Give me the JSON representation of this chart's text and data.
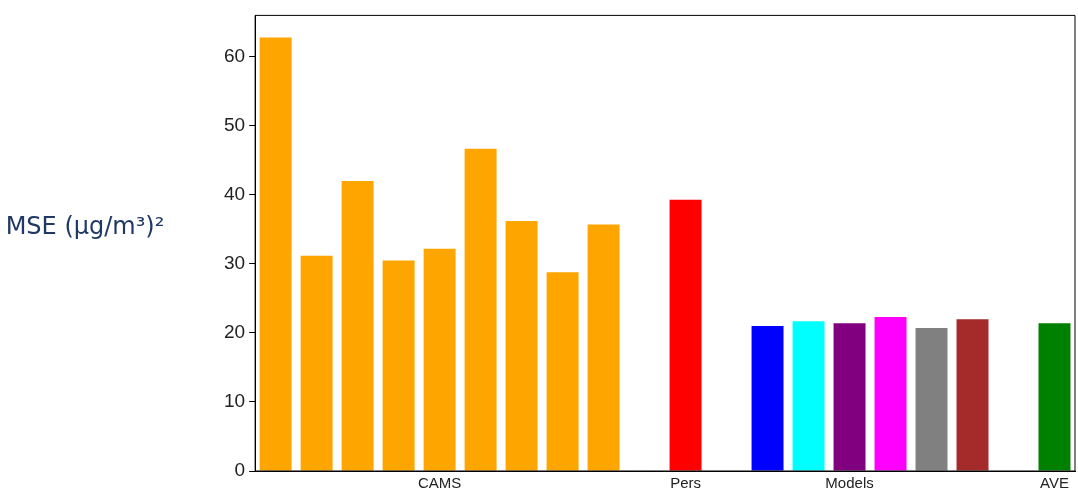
{
  "chart_data": {
    "type": "bar",
    "ylabel": "MSE (µg/m³)²",
    "categories": [
      null,
      null,
      null,
      null,
      "CAMS",
      null,
      null,
      null,
      null,
      null,
      "Pers",
      null,
      null,
      null,
      "Models",
      null,
      null,
      null,
      null,
      "AVE"
    ],
    "values": [
      62.8,
      31.2,
      42.0,
      30.5,
      32.2,
      46.7,
      36.2,
      28.8,
      35.7,
      null,
      39.3,
      null,
      21.0,
      21.7,
      21.4,
      22.3,
      20.7,
      22.0,
      null,
      21.4
    ],
    "colors": [
      "#ffa500",
      "#ffa500",
      "#ffa500",
      "#ffa500",
      "#ffa500",
      "#ffa500",
      "#ffa500",
      "#ffa500",
      "#ffa500",
      null,
      "#ff0000",
      null,
      "#0000ff",
      "#00ffff",
      "#800080",
      "#ff00ff",
      "#808080",
      "#a52a2a",
      null,
      "#008000"
    ],
    "ylim": [
      0,
      66
    ],
    "yticks": [
      0,
      10,
      20,
      30,
      40,
      50,
      60
    ],
    "grid": false,
    "legend": false
  }
}
